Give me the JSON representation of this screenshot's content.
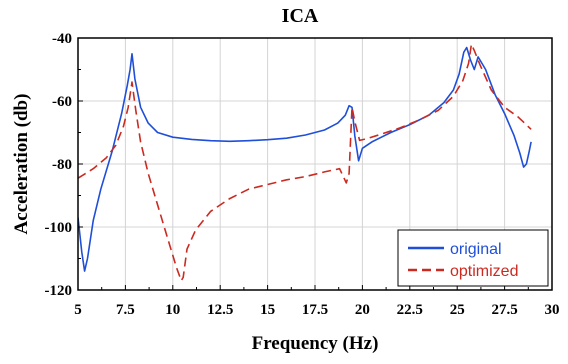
{
  "chart_data": {
    "type": "line",
    "title": "ICA",
    "xlabel": "Frequency (Hz)",
    "ylabel": "Acceleration (db)",
    "xlim": [
      5,
      30
    ],
    "ylim": [
      -120,
      -40
    ],
    "x_ticks": [
      5,
      7.5,
      10,
      12.5,
      15,
      17.5,
      20,
      22.5,
      25,
      27.5,
      30
    ],
    "x_tick_labels": [
      "5",
      "7.5",
      "10",
      "12.5",
      "15",
      "17.5",
      "20",
      "22.5",
      "25",
      "27.5",
      "30"
    ],
    "y_ticks": [
      -120,
      -100,
      -80,
      -60,
      -40
    ],
    "y_tick_labels": [
      "-120",
      "-100",
      "-80",
      "-60",
      "-40"
    ],
    "grid": true,
    "legend_position": "bottom-right",
    "series": [
      {
        "name": "original",
        "color": "#1f4fd8",
        "dash": "solid",
        "x": [
          5.0,
          5.2,
          5.35,
          5.5,
          5.8,
          6.2,
          6.8,
          7.3,
          7.6,
          7.75,
          7.85,
          8.0,
          8.3,
          8.7,
          9.2,
          10.0,
          11.0,
          12.0,
          13.0,
          14.0,
          15.0,
          16.0,
          17.0,
          18.0,
          18.7,
          19.1,
          19.3,
          19.45,
          19.6,
          19.8,
          20.0,
          20.5,
          21.5,
          22.5,
          23.5,
          24.3,
          24.8,
          25.1,
          25.35,
          25.5,
          25.7,
          25.9,
          26.1,
          26.5,
          27.0,
          27.5,
          28.0,
          28.3,
          28.5,
          28.65,
          28.8,
          28.9
        ],
        "y": [
          -97,
          -108,
          -114,
          -110,
          -98,
          -88,
          -76,
          -64,
          -55,
          -50,
          -45,
          -53,
          -62,
          -67,
          -70,
          -71.5,
          -72.2,
          -72.6,
          -72.8,
          -72.6,
          -72.3,
          -71.8,
          -70.8,
          -69.2,
          -67,
          -64.5,
          -61.5,
          -62,
          -71,
          -79,
          -75,
          -73,
          -70,
          -67.5,
          -64.5,
          -60.5,
          -56.5,
          -51.5,
          -44.5,
          -43,
          -47,
          -50,
          -46,
          -50,
          -58,
          -64,
          -71,
          -76.5,
          -81,
          -80,
          -76,
          -73
        ]
      },
      {
        "name": "optimized",
        "color": "#cc2a20",
        "dash": "dashed",
        "x": [
          5.0,
          5.8,
          6.5,
          7.0,
          7.4,
          7.65,
          7.85,
          8.05,
          8.3,
          8.7,
          9.2,
          9.8,
          10.2,
          10.45,
          10.55,
          10.75,
          11.2,
          12.0,
          13.0,
          14.0,
          15.0,
          16.0,
          17.0,
          18.0,
          18.8,
          19.15,
          19.3,
          19.45,
          19.6,
          19.85,
          20.2,
          21.0,
          22.0,
          23.0,
          24.0,
          24.8,
          25.3,
          25.6,
          25.75,
          25.9,
          26.2,
          26.8,
          27.5,
          28.2,
          28.9
        ],
        "y": [
          -84.5,
          -81.5,
          -78,
          -74,
          -68,
          -62,
          -54,
          -63,
          -73,
          -83,
          -93,
          -105,
          -113,
          -117,
          -116,
          -107,
          -101,
          -95,
          -91,
          -88,
          -86.5,
          -85,
          -84,
          -82.5,
          -81.5,
          -86,
          -83,
          -62,
          -66.5,
          -72.5,
          -72,
          -70.5,
          -68.5,
          -66,
          -63,
          -58.5,
          -53.5,
          -48,
          -42,
          -44,
          -48.5,
          -56.5,
          -62,
          -65,
          -69
        ]
      }
    ]
  }
}
